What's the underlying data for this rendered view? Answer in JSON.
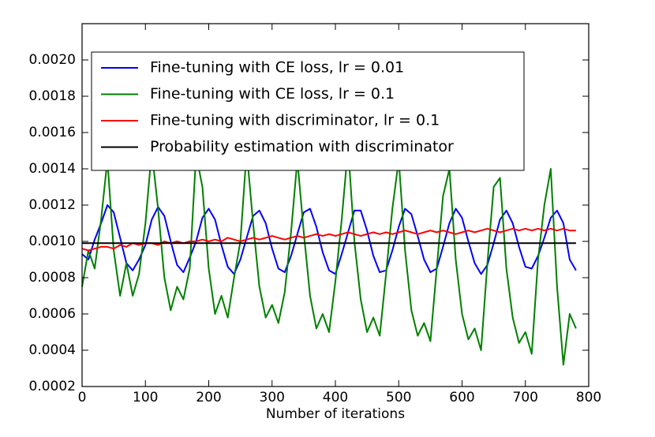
{
  "chart_data": {
    "type": "line",
    "xlabel": "Number of iterations",
    "x": [
      0,
      10,
      20,
      30,
      40,
      50,
      60,
      70,
      80,
      90,
      100,
      110,
      120,
      130,
      140,
      150,
      160,
      170,
      180,
      190,
      200,
      210,
      220,
      230,
      240,
      250,
      260,
      270,
      280,
      290,
      300,
      310,
      320,
      330,
      340,
      350,
      360,
      370,
      380,
      390,
      400,
      410,
      420,
      430,
      440,
      450,
      460,
      470,
      480,
      490,
      500,
      510,
      520,
      530,
      540,
      550,
      560,
      570,
      580,
      590,
      600,
      610,
      620,
      630,
      640,
      650,
      660,
      670,
      680,
      690,
      700,
      710,
      720,
      730,
      740,
      750,
      760,
      770,
      780
    ],
    "series": [
      {
        "name": "Fine-tuning with CE loss, lr = 0.01",
        "color": "#0000ff",
        "values": [
          0.00093,
          0.0009,
          0.00101,
          0.0011,
          0.0012,
          0.00116,
          0.00102,
          0.00088,
          0.00084,
          0.0009,
          0.00098,
          0.00112,
          0.00119,
          0.00114,
          0.001,
          0.00087,
          0.00083,
          0.00091,
          0.001,
          0.00113,
          0.00118,
          0.00112,
          0.00098,
          0.00086,
          0.00082,
          0.0009,
          0.00102,
          0.00114,
          0.00117,
          0.0011,
          0.00096,
          0.00085,
          0.00083,
          0.00092,
          0.00104,
          0.00116,
          0.00118,
          0.00108,
          0.00094,
          0.00084,
          0.00082,
          0.00093,
          0.00105,
          0.00117,
          0.00117,
          0.00106,
          0.00092,
          0.00083,
          0.00084,
          0.00095,
          0.00108,
          0.00118,
          0.00115,
          0.00103,
          0.0009,
          0.00083,
          0.00085,
          0.00097,
          0.0011,
          0.00118,
          0.00113,
          0.001,
          0.00088,
          0.00082,
          0.00087,
          0.00099,
          0.00112,
          0.00117,
          0.0011,
          0.00097,
          0.00086,
          0.00085,
          0.00092,
          0.00102,
          0.00113,
          0.00117,
          0.0011,
          0.0009,
          0.00084
        ]
      },
      {
        "name": "Fine-tuning with CE loss, lr = 0.1",
        "color": "#008000",
        "values": [
          0.00075,
          0.00095,
          0.00085,
          0.00112,
          0.00145,
          0.00095,
          0.0007,
          0.00088,
          0.0007,
          0.00082,
          0.0011,
          0.0015,
          0.00118,
          0.0008,
          0.00062,
          0.00075,
          0.00068,
          0.00085,
          0.00148,
          0.0013,
          0.00085,
          0.0006,
          0.0007,
          0.00058,
          0.0008,
          0.001,
          0.0015,
          0.0011,
          0.00075,
          0.00058,
          0.00065,
          0.00055,
          0.00072,
          0.00105,
          0.00145,
          0.00105,
          0.0007,
          0.00052,
          0.0006,
          0.0005,
          0.00078,
          0.00112,
          0.00152,
          0.001,
          0.00068,
          0.0005,
          0.00058,
          0.00048,
          0.00082,
          0.00118,
          0.00145,
          0.00095,
          0.00062,
          0.00048,
          0.00055,
          0.00045,
          0.00085,
          0.00125,
          0.0014,
          0.0009,
          0.0006,
          0.00046,
          0.00052,
          0.0004,
          0.00088,
          0.0013,
          0.00135,
          0.00085,
          0.00058,
          0.00044,
          0.0005,
          0.00038,
          0.0009,
          0.0012,
          0.0014,
          0.00075,
          0.00032,
          0.0006,
          0.00052
        ]
      },
      {
        "name": "Fine-tuning with discriminator, lr = 0.1",
        "color": "#ff0000",
        "values": [
          0.00096,
          0.00095,
          0.00096,
          0.00097,
          0.00097,
          0.00096,
          0.00098,
          0.00097,
          0.00099,
          0.00098,
          0.00099,
          0.00099,
          0.00098,
          0.001,
          0.00099,
          0.001,
          0.00099,
          0.001,
          0.001,
          0.00101,
          0.001,
          0.00101,
          0.001,
          0.00102,
          0.00101,
          0.001,
          0.00101,
          0.00102,
          0.00101,
          0.00102,
          0.00103,
          0.00102,
          0.00101,
          0.00102,
          0.00103,
          0.00102,
          0.00103,
          0.00104,
          0.00103,
          0.00104,
          0.00103,
          0.00104,
          0.00105,
          0.00104,
          0.00103,
          0.00104,
          0.00105,
          0.00104,
          0.00105,
          0.00104,
          0.00105,
          0.00106,
          0.00105,
          0.00104,
          0.00105,
          0.00106,
          0.00105,
          0.00106,
          0.00105,
          0.00104,
          0.00105,
          0.00106,
          0.00105,
          0.00106,
          0.00107,
          0.00106,
          0.00105,
          0.00106,
          0.00107,
          0.00106,
          0.00107,
          0.00106,
          0.00107,
          0.00106,
          0.00107,
          0.00106,
          0.00107,
          0.00106,
          0.00106
        ]
      },
      {
        "name": "Probability estimation with discriminator",
        "color": "#000000",
        "x": [
          0,
          780
        ],
        "values": [
          0.00099,
          0.00099
        ]
      }
    ],
    "xlim": [
      0,
      800
    ],
    "xticks": [
      0,
      100,
      200,
      300,
      400,
      500,
      600,
      700,
      800
    ],
    "ylim": [
      0.0002,
      0.0022
    ],
    "yticks": [
      0.0002,
      0.0004,
      0.0006,
      0.0008,
      {
        "value": 0.001,
        "label": "0.0010"
      },
      0.0012,
      0.0014,
      0.0016,
      0.0018,
      {
        "value": 0.002,
        "label": "0.0020"
      }
    ],
    "legend": "upper left",
    "grid": false
  }
}
